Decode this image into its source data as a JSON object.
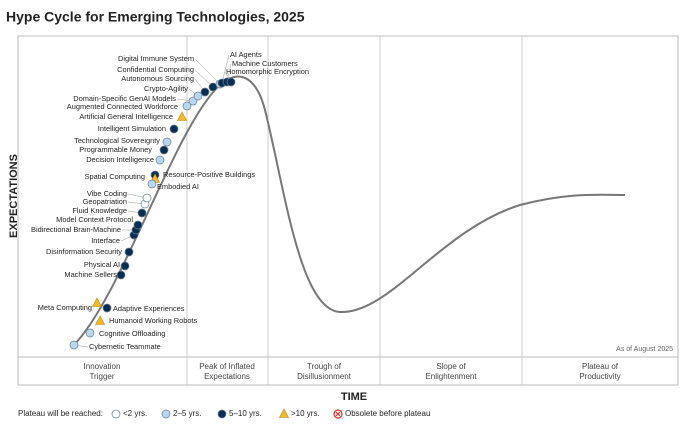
{
  "title": "Hype Cycle for Emerging Technologies, 2025",
  "y_axis_label": "EXPECTATIONS",
  "x_axis_label": "TIME",
  "note": "As of August 2025",
  "phases": [
    {
      "lines": [
        "Innovation",
        "Trigger"
      ]
    },
    {
      "lines": [
        "Peak of Inflated",
        "Expectations"
      ]
    },
    {
      "lines": [
        "Trough of",
        "Disillusionment"
      ]
    },
    {
      "lines": [
        "Slope of",
        "Enlightenment"
      ]
    },
    {
      "lines": [
        "Plateau of",
        "Productivity"
      ]
    }
  ],
  "legend": {
    "title": "Plateau will be reached:",
    "items": [
      {
        "label": "<2 yrs.",
        "shape": "circle",
        "color": "#ffffff"
      },
      {
        "label": "2–5 yrs.",
        "shape": "circle",
        "color": "#b9d7ec"
      },
      {
        "label": "5–10 yrs.",
        "shape": "circle",
        "color": "#0b2d52"
      },
      {
        "label": ">10 yrs.",
        "shape": "triangle",
        "color": "#f2b82e"
      },
      {
        "label": "Obsolete before plateau",
        "shape": "cross",
        "color": "#d9302c"
      }
    ]
  },
  "technologies": [
    {
      "label": "Cybernetic Teammate",
      "plateau": "2–5 yrs."
    },
    {
      "label": "Cognitive Offloading",
      "plateau": "2–5 yrs."
    },
    {
      "label": "Humanoid Working Robots",
      "plateau": ">10 yrs."
    },
    {
      "label": "Meta Computing",
      "plateau": ">10 yrs."
    },
    {
      "label": "Adaptive Experiences",
      "plateau": "5–10 yrs."
    },
    {
      "label": "Machine Sellers",
      "plateau": "5–10 yrs."
    },
    {
      "label": "Physical AI",
      "plateau": "5–10 yrs."
    },
    {
      "label": "Disinformation Security",
      "plateau": "5–10 yrs."
    },
    {
      "label": "Interface",
      "plateau": "5–10 yrs."
    },
    {
      "label": "Bidirectional Brain-Machine",
      "plateau": "5–10 yrs."
    },
    {
      "label": "Model Context Protocol",
      "plateau": "5–10 yrs."
    },
    {
      "label": "Fluid Knowledge",
      "plateau": "5–10 yrs."
    },
    {
      "label": "Geopatriation",
      "plateau": "<2 yrs."
    },
    {
      "label": "Vibe Coding",
      "plateau": "<2 yrs."
    },
    {
      "label": "Spatial Computing",
      "plateau": "5–10 yrs."
    },
    {
      "label": "Resource-Positive Buildings",
      "plateau": ">10 yrs."
    },
    {
      "label": "Embodied AI",
      "plateau": "2–5 yrs."
    },
    {
      "label": "Decision Intelligence",
      "plateau": "2–5 yrs."
    },
    {
      "label": "Programmable Money",
      "plateau": "5–10 yrs."
    },
    {
      "label": "Technological Sovereignty",
      "plateau": "2–5 yrs."
    },
    {
      "label": "Intelligent Simulation",
      "plateau": "5–10 yrs."
    },
    {
      "label": "Artificial General Intelligence",
      "plateau": ">10 yrs."
    },
    {
      "label": "Augmented Connected Workforce",
      "plateau": "2–5 yrs."
    },
    {
      "label": "Domain-Specific GenAI Models",
      "plateau": "2–5 yrs."
    },
    {
      "label": "Crypto-Agility",
      "plateau": "2–5 yrs."
    },
    {
      "label": "Autonomous Sourcing",
      "plateau": "5–10 yrs."
    },
    {
      "label": "Confidential Computing",
      "plateau": "5–10 yrs."
    },
    {
      "label": "Digital Immune System",
      "plateau": "2–5 yrs."
    },
    {
      "label": "AI Agents",
      "plateau": "5–10 yrs."
    },
    {
      "label": "Machine Customers",
      "plateau": "5–10 yrs."
    },
    {
      "label": "Homomorphic Encryption",
      "plateau": "5–10 yrs."
    }
  ]
}
